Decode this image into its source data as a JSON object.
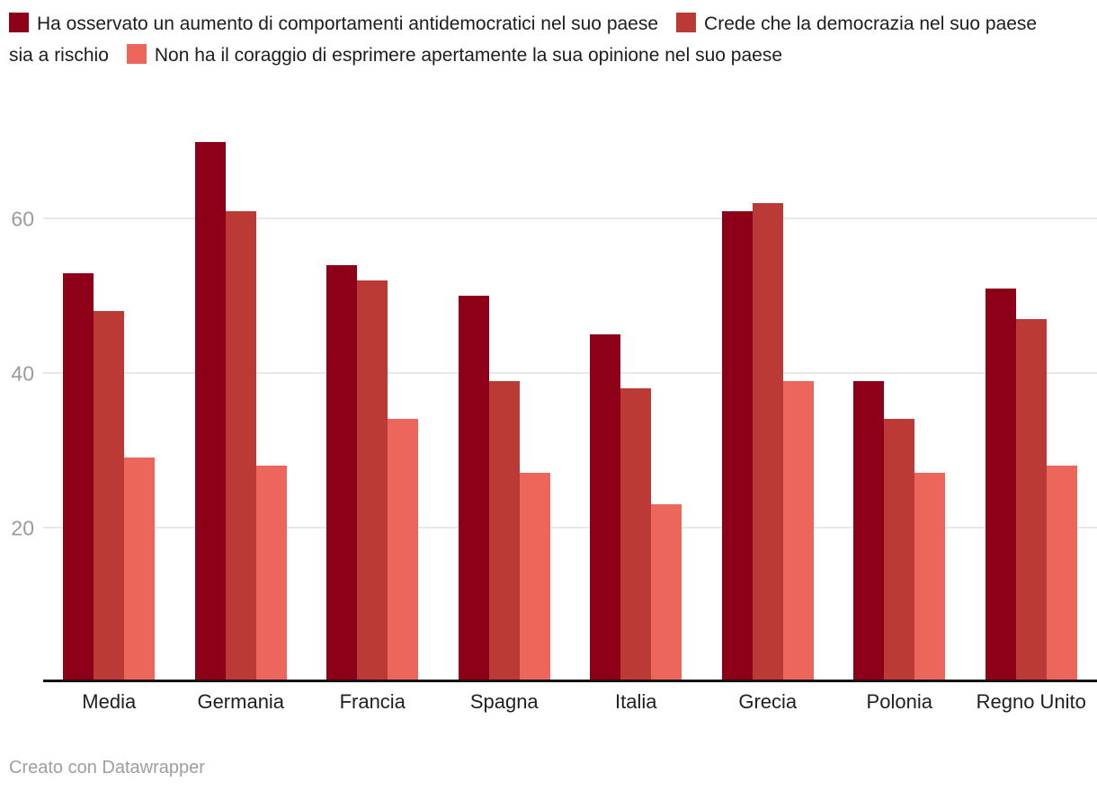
{
  "chart_data": {
    "type": "bar",
    "categories": [
      "Media",
      "Germania",
      "Francia",
      "Spagna",
      "Italia",
      "Grecia",
      "Polonia",
      "Regno Unito"
    ],
    "series": [
      {
        "name": "Ha osservato un aumento di comportamenti antidemocratici nel suo paese",
        "color": "#8e0018",
        "values": [
          53,
          70,
          54,
          50,
          45,
          61,
          39,
          51
        ]
      },
      {
        "name": "Crede che la democrazia nel suo paese sia a rischio",
        "color": "#bc3a35",
        "values": [
          48,
          61,
          52,
          39,
          38,
          62,
          34,
          47
        ]
      },
      {
        "name": "Non ha il coraggio di esprimere apertamente la sua opinione nel suo paese",
        "color": "#ec665c",
        "values": [
          29,
          28,
          34,
          27,
          23,
          39,
          27,
          28
        ]
      }
    ],
    "yticks": [
      20,
      40,
      60
    ],
    "ymax": 72.3,
    "grid": true,
    "legend_position": "top",
    "title": "",
    "xlabel": "",
    "ylabel": ""
  },
  "colors": {
    "gridline": "#e8e8e8",
    "axis_line": "#141414",
    "tick_text": "#9b9b9b",
    "label_text": "#1f1f1f",
    "legend_text": "#1d1d1d",
    "footer_text": "#9e9e9e"
  },
  "footer": {
    "credit": "Creato con Datawrapper"
  }
}
